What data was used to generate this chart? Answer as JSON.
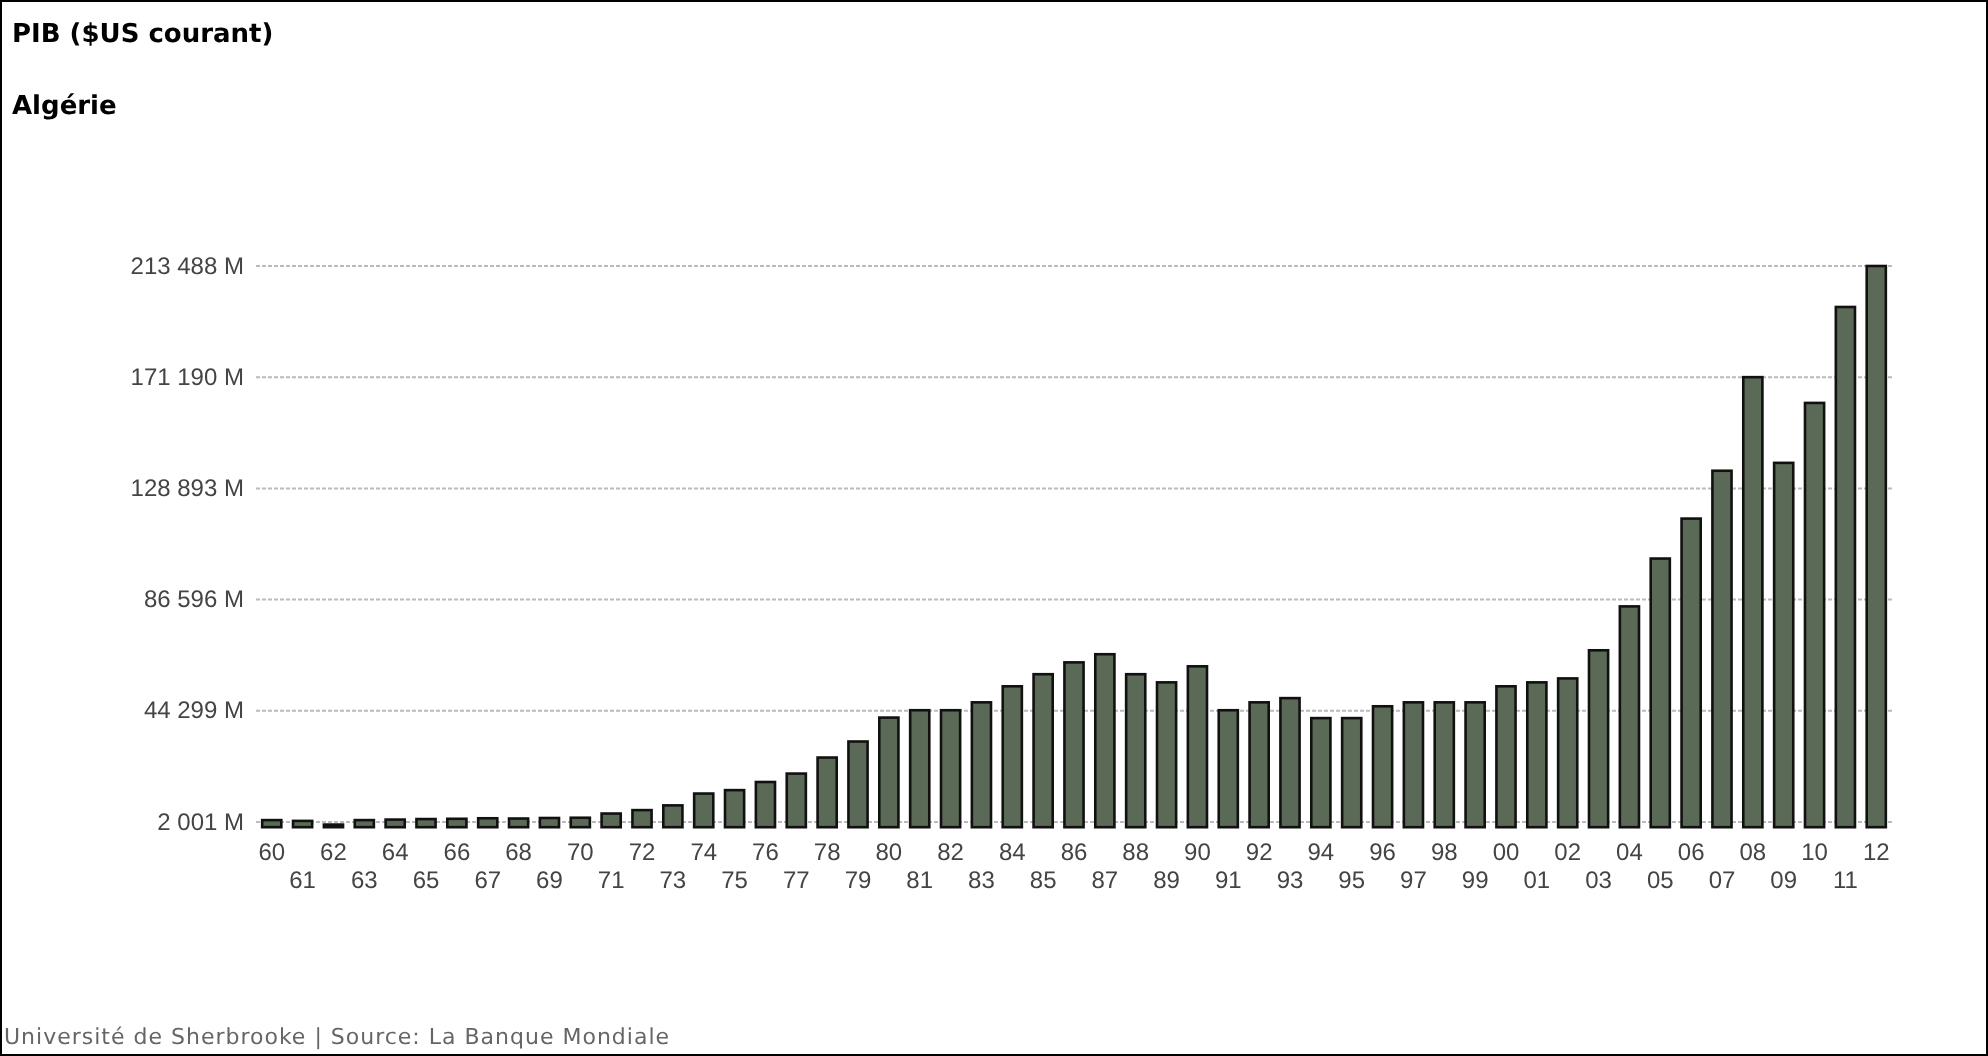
{
  "chart_data": {
    "type": "bar",
    "title": "PIB ($US courant)",
    "subtitle": "Algérie",
    "categories": [
      "60",
      "61",
      "62",
      "63",
      "64",
      "65",
      "66",
      "67",
      "68",
      "69",
      "70",
      "71",
      "72",
      "73",
      "74",
      "75",
      "76",
      "77",
      "78",
      "79",
      "80",
      "81",
      "82",
      "83",
      "84",
      "85",
      "86",
      "87",
      "88",
      "89",
      "90",
      "91",
      "92",
      "93",
      "94",
      "95",
      "96",
      "97",
      "98",
      "99",
      "00",
      "01",
      "02",
      "03",
      "04",
      "05",
      "06",
      "07",
      "08",
      "09",
      "10",
      "11",
      "12"
    ],
    "values": [
      2700,
      2400,
      1000,
      2700,
      2900,
      3100,
      3200,
      3400,
      3300,
      3500,
      3600,
      5200,
      6500,
      8300,
      12800,
      14100,
      17200,
      20400,
      26500,
      32600,
      41700,
      44500,
      44500,
      47500,
      53600,
      58200,
      62700,
      65800,
      58200,
      55100,
      61200,
      44500,
      47500,
      49100,
      41500,
      41500,
      46000,
      47500,
      47500,
      47500,
      53600,
      55100,
      56600,
      67300,
      84000,
      102200,
      117400,
      135600,
      171200,
      138600,
      161400,
      197900,
      213488
    ],
    "color": "#5b6a56",
    "ylim": [
      0,
      213488
    ],
    "yticks": [
      {
        "value": 2001,
        "label": "2 001 M"
      },
      {
        "value": 44299,
        "label": "44 299 M"
      },
      {
        "value": 86596,
        "label": "86 596 M"
      },
      {
        "value": 128893,
        "label": "128 893 M"
      },
      {
        "value": 171190,
        "label": "171 190 M"
      },
      {
        "value": 213488,
        "label": "213 488 M"
      }
    ],
    "grid": "y",
    "annotations": [
      "Université de Sherbrooke | Source: La Banque Mondiale"
    ]
  }
}
